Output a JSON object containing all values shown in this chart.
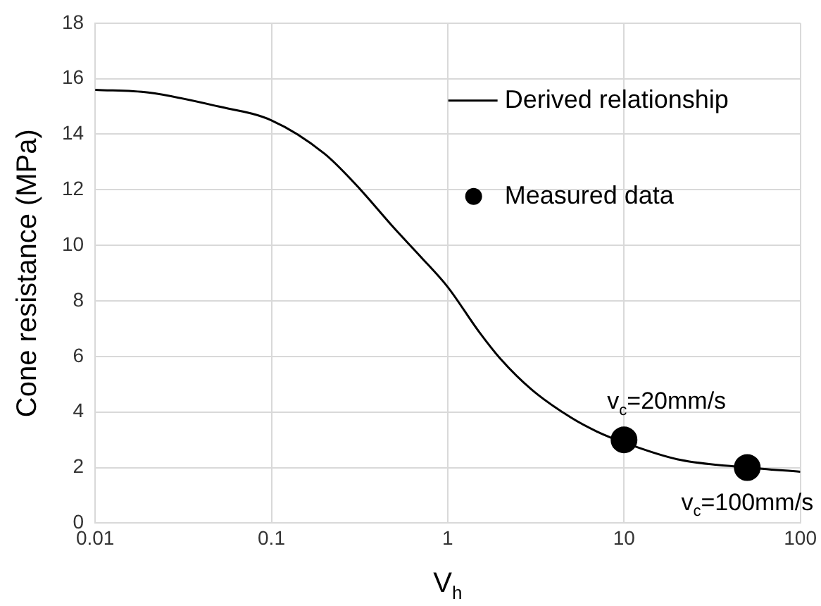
{
  "chart_data": {
    "type": "line",
    "xlabel": "V$_{h}$",
    "ylabel": "Cone resistance (MPa)",
    "log": "x",
    "xlim": [
      0.01,
      100
    ],
    "xticks": [
      0.01,
      0.1,
      1,
      10,
      100
    ],
    "ylim": [
      0,
      18
    ],
    "yticks": [
      0,
      2,
      4,
      6,
      8,
      10,
      12,
      14,
      16,
      18
    ],
    "grid": true,
    "legend": "top right",
    "series": [
      {
        "name": "Derived relationship",
        "type": "line",
        "color": "#000000",
        "marker": "none",
        "x": [
          0.01,
          0.02,
          0.05,
          0.1,
          0.2,
          0.3,
          0.5,
          0.7,
          1,
          1.5,
          2,
          3,
          5,
          7,
          10,
          20,
          50,
          100
        ],
        "values": [
          15.6,
          15.5,
          15.0,
          14.5,
          13.3,
          12.2,
          10.6,
          9.6,
          8.5,
          6.9,
          5.9,
          4.8,
          3.8,
          3.3,
          2.9,
          2.3,
          2.0,
          1.85
        ]
      },
      {
        "name": "Measured data",
        "type": "scatter",
        "color": "#000000",
        "marker": "circle",
        "x": [
          10,
          50
        ],
        "values": [
          3.0,
          2.0
        ]
      }
    ],
    "annotations": [
      {
        "text": "v$_{c}$=20mm/s",
        "x": 10,
        "y": 3.0
      },
      {
        "text": "v$_{c}$=100mm/s",
        "x": 50,
        "y": 2.0
      }
    ]
  }
}
